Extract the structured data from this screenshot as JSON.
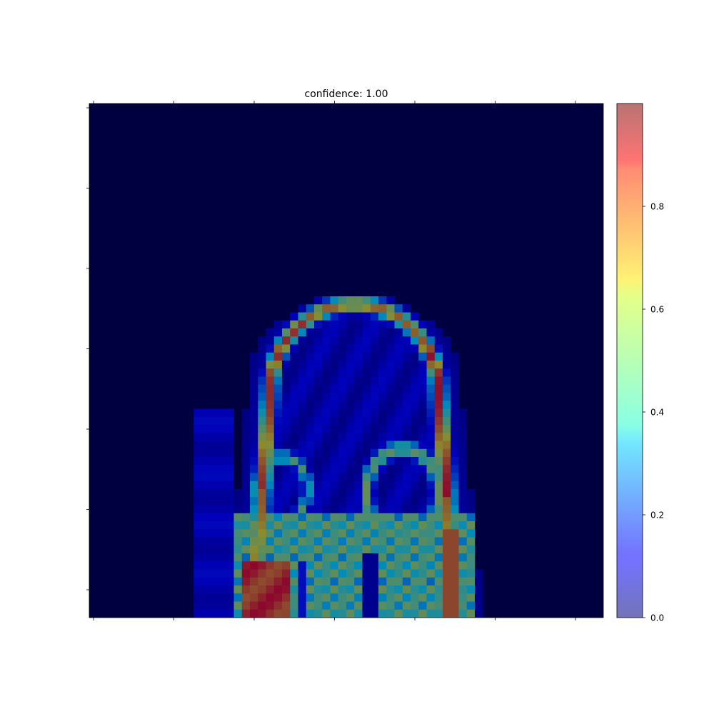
{
  "chart_data": {
    "type": "heatmap",
    "title": "confidence: 1.00",
    "colormap": "jet",
    "overlay_alpha": 0.5,
    "value_range": [
      0.0,
      1.0
    ],
    "grid": false,
    "x_ticks_labeled": false,
    "y_ticks_labeled": false,
    "colorbar": {
      "location": "right",
      "tick_labels": [
        "0.0",
        "0.2",
        "0.4",
        "0.6",
        "0.8"
      ],
      "tick_values": [
        0.0,
        0.2,
        0.4,
        0.6,
        0.8
      ]
    },
    "image_grid_size": [
      64,
      64
    ],
    "regions_description": "High-confidence ring outlining a dome-shaped structure in the lower center; hottest area (≈0.8–0.9) at bottom-left of the structure; background near 0."
  }
}
